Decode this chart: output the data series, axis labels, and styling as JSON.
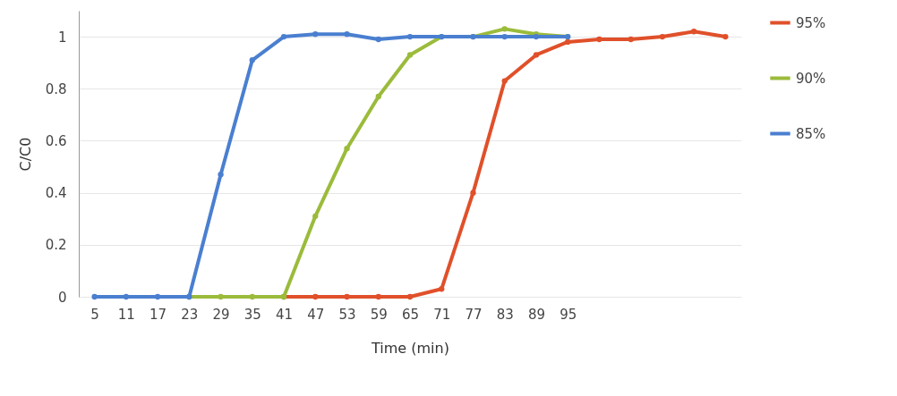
{
  "chart_data": {
    "type": "line",
    "xlabel": "Time (min)",
    "ylabel": "C/C0",
    "categories": [
      "5",
      "11",
      "17",
      "23",
      "29",
      "35",
      "41",
      "47",
      "53",
      "59",
      "65",
      "71",
      "77",
      "83",
      "89",
      "95",
      null,
      null,
      null,
      null,
      null
    ],
    "series": [
      {
        "name": "95%",
        "color": "#e0502a",
        "values": [
          null,
          null,
          null,
          null,
          null,
          null,
          0,
          0,
          0,
          0,
          0,
          0.03,
          0.4,
          0.83,
          0.93,
          0.98,
          0.99,
          0.99,
          1.0,
          1.02,
          1.0
        ]
      },
      {
        "name": "90%",
        "color": "#9bbb3b",
        "values": [
          null,
          null,
          null,
          0,
          0,
          0,
          0,
          0.31,
          0.57,
          0.77,
          0.93,
          1.0,
          1.0,
          1.03,
          1.01,
          1.0,
          null,
          null,
          null,
          null,
          null
        ]
      },
      {
        "name": "85%",
        "color": "#4a7fd0",
        "values": [
          0,
          0,
          0,
          0,
          0.47,
          0.91,
          1.0,
          1.01,
          1.01,
          0.99,
          1.0,
          1.0,
          1.0,
          1.0,
          1.0,
          1.0,
          null,
          null,
          null,
          null,
          null
        ]
      }
    ],
    "ylim": [
      0,
      1.1
    ],
    "yticks": [
      0,
      0.2,
      0.4,
      0.6,
      0.8,
      1
    ],
    "grid": "y",
    "legend": "right",
    "marker": "circle",
    "line_style": "solid"
  }
}
